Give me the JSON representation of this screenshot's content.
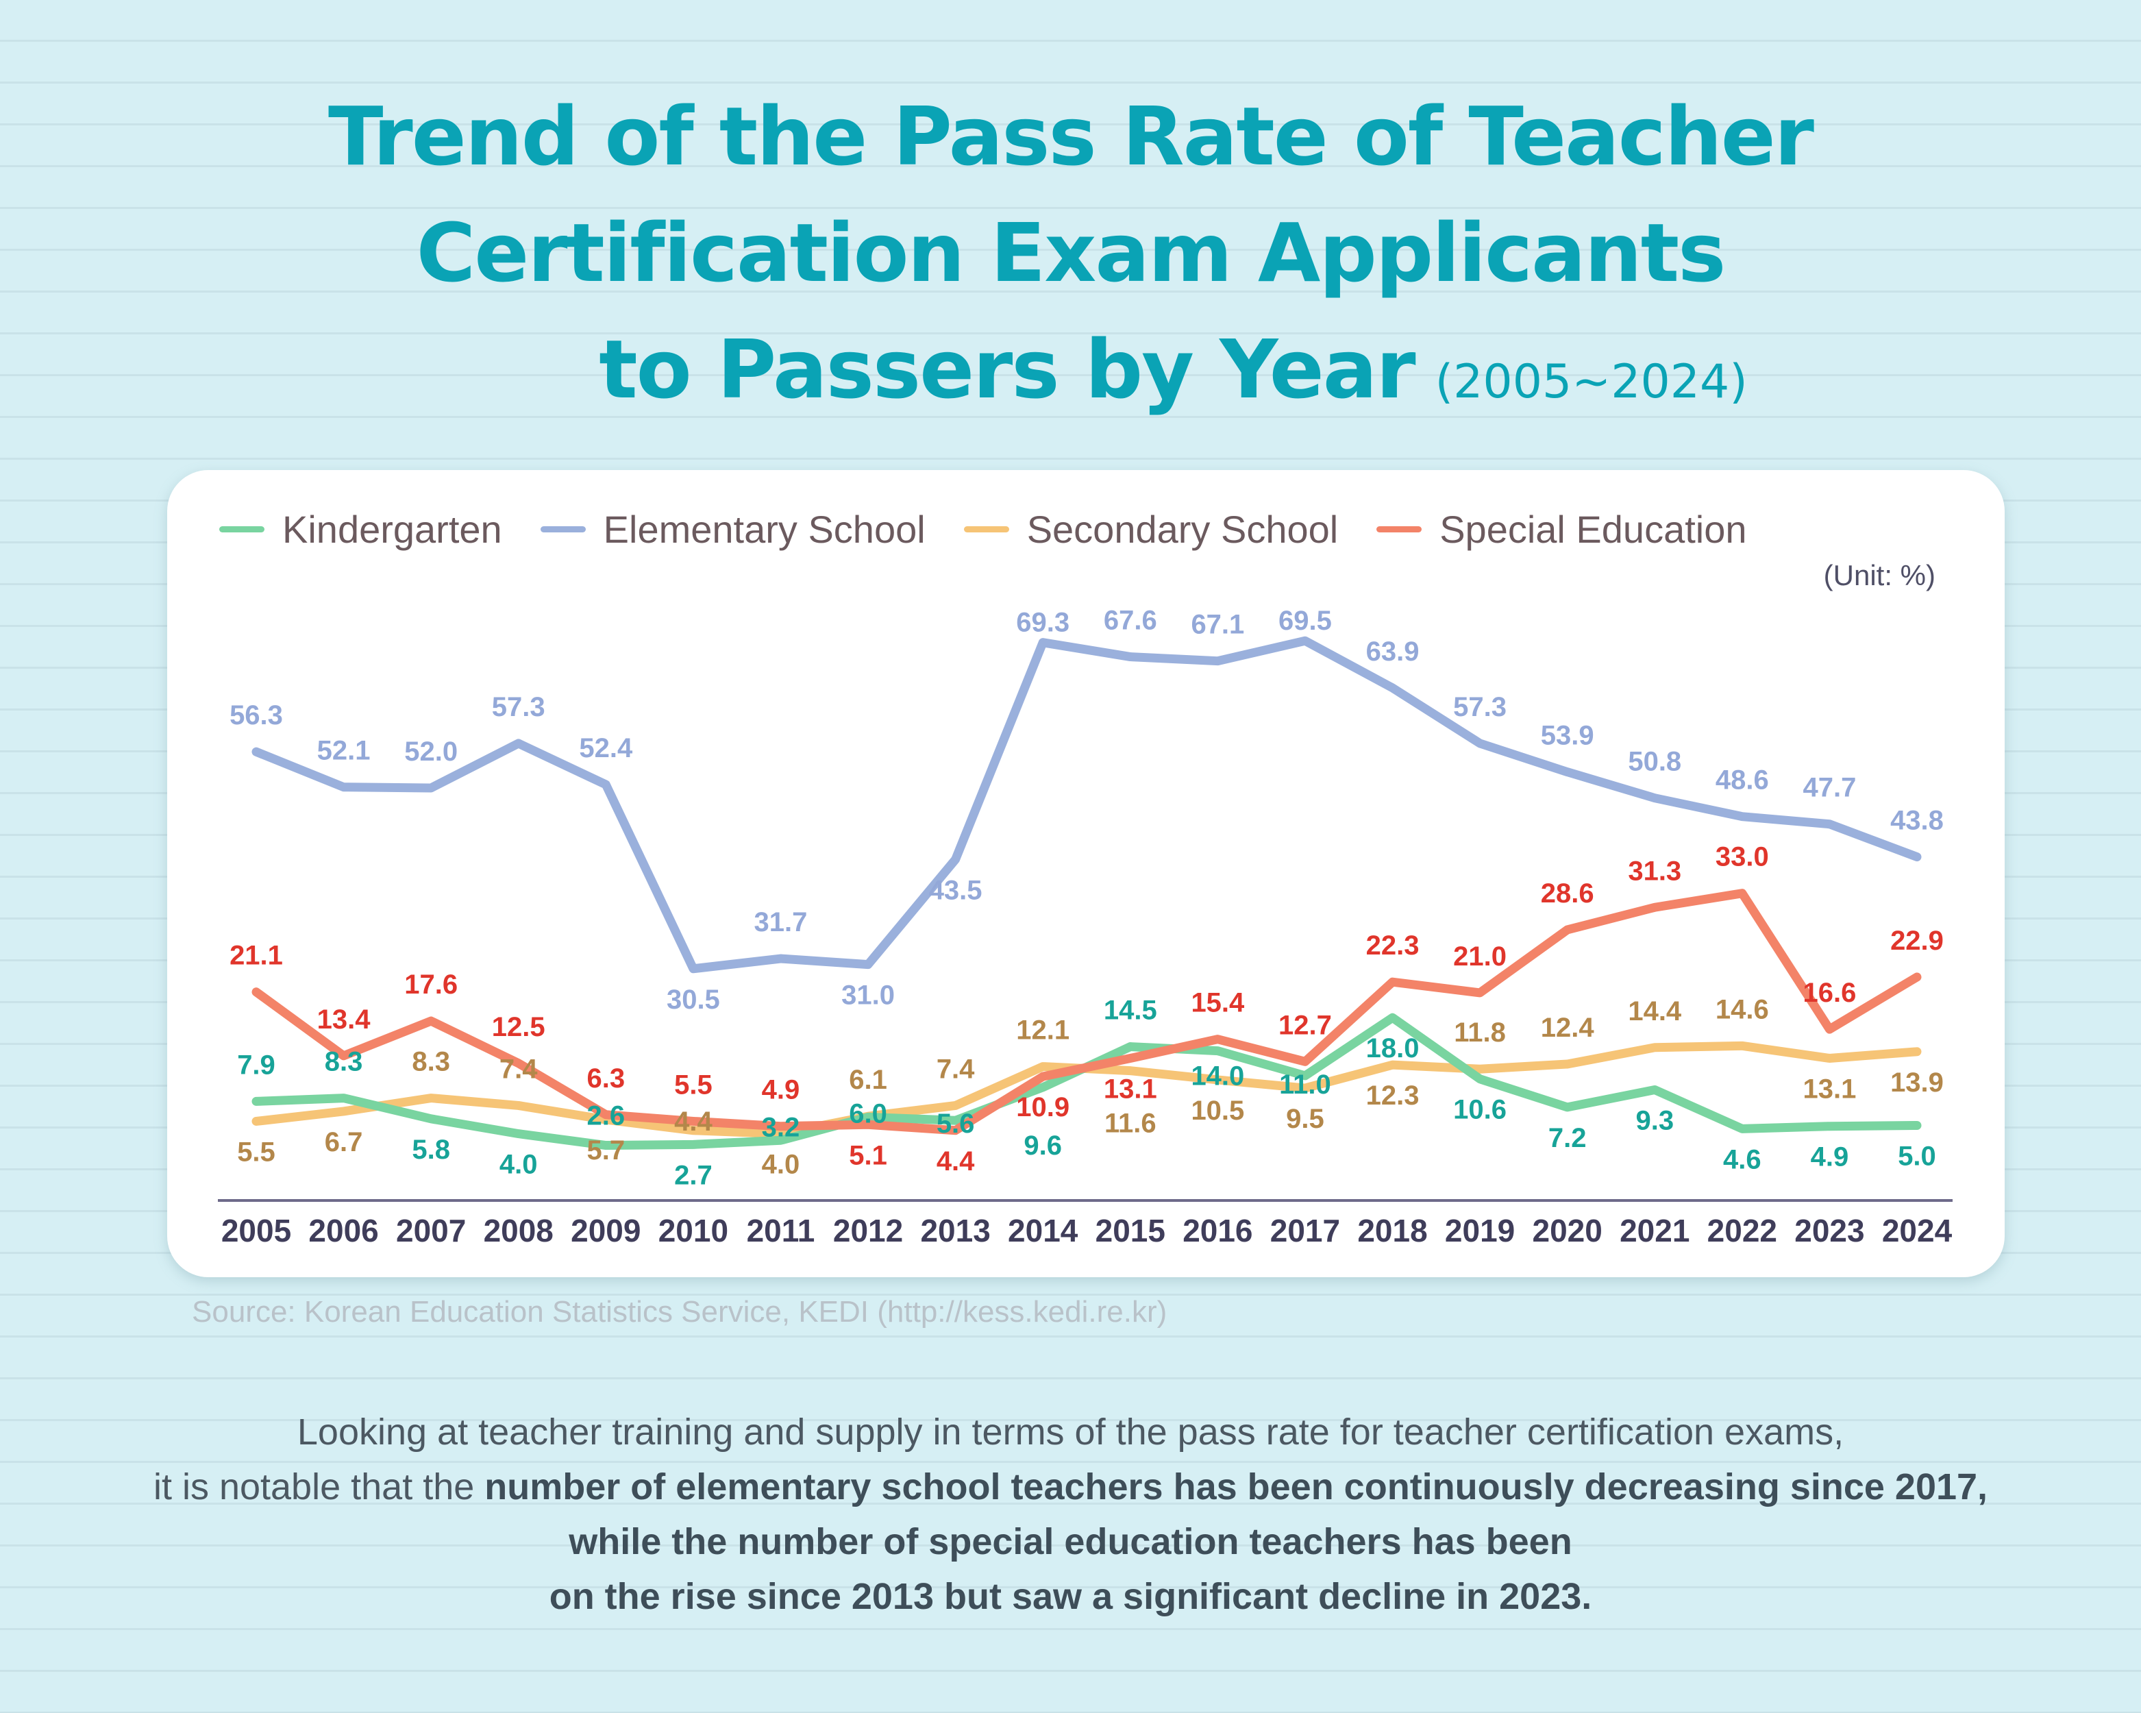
{
  "title": {
    "line1": "Trend of the Pass Rate of Teacher",
    "line2": "Certification Exam Applicants",
    "line3": "to Passers by Year",
    "period": "(2005~2024)"
  },
  "unit": "(Unit: %)",
  "source": "Source: Korean Education Statistics Service, KEDI (http://kess.kedi.re.kr)",
  "description": {
    "line1": "Looking at teacher training and supply in terms of the pass rate for teacher certification exams,",
    "line2_plain": "it is notable that the ",
    "line2_bold": "number of elementary school teachers has been continuously decreasing since 2017,",
    "line3_bold": "while the number of special education teachers has been",
    "line4_bold": "on the rise since 2013 but saw a significant decline in 2023."
  },
  "chart_data": {
    "type": "line",
    "title": "Trend of the Pass Rate of Teacher Certification Exam Applicants to Passers by Year (2005~2024)",
    "ylabel": "(Unit: %)",
    "xlabel": "",
    "grid": false,
    "legend": "top",
    "categories": [
      "2005",
      "2006",
      "2007",
      "2008",
      "2009",
      "2010",
      "2011",
      "2012",
      "2013",
      "2014",
      "2015",
      "2016",
      "2017",
      "2018",
      "2019",
      "2020",
      "2021",
      "2022",
      "2023",
      "2024"
    ],
    "series": [
      {
        "name": "Kindergarten",
        "line_color": "#79d4a0",
        "label_color": "#17a398",
        "values": [
          7.9,
          8.3,
          5.8,
          4.0,
          2.6,
          2.7,
          3.2,
          6.0,
          5.6,
          9.6,
          14.5,
          14.0,
          11.0,
          18.0,
          10.6,
          7.2,
          9.3,
          4.6,
          4.9,
          5.0
        ]
      },
      {
        "name": "Elementary School",
        "line_color": "#9ab0dc",
        "label_color": "#93a8d8",
        "values": [
          56.3,
          52.1,
          52.0,
          57.3,
          52.4,
          30.5,
          31.7,
          31.0,
          43.5,
          69.3,
          67.6,
          67.1,
          69.5,
          63.9,
          57.3,
          53.9,
          50.8,
          48.6,
          47.7,
          43.8
        ]
      },
      {
        "name": "Secondary School",
        "line_color": "#f6c476",
        "label_color": "#b3874a",
        "values": [
          5.5,
          6.7,
          8.3,
          7.4,
          5.7,
          4.4,
          4.0,
          6.1,
          7.4,
          12.1,
          11.6,
          10.5,
          9.5,
          12.3,
          11.8,
          12.4,
          14.4,
          14.6,
          13.1,
          13.9
        ]
      },
      {
        "name": "Special Education",
        "line_color": "#f38368",
        "label_color": "#e0352b",
        "values": [
          21.1,
          13.4,
          17.6,
          12.5,
          6.3,
          5.5,
          4.9,
          5.1,
          4.4,
          10.9,
          13.1,
          15.4,
          12.7,
          22.3,
          21.0,
          28.6,
          31.3,
          33.0,
          16.6,
          22.9
        ]
      }
    ]
  }
}
